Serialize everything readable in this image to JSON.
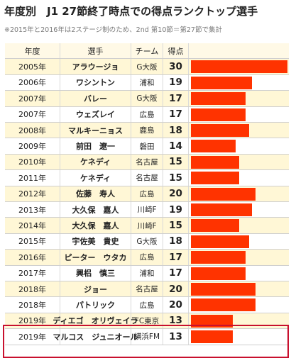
{
  "title": "年度別　J1 27節終了時点での得点ランクトップ選手",
  "note": "※2015年と2016年は2ステージ制のため、2nd 第10節＝第27節で集計",
  "headers": {
    "year": "年度",
    "player": "選手",
    "team": "チーム",
    "goals": "得点"
  },
  "colors": {
    "bar": "#ff3300",
    "stripe": "#fff7d6",
    "highlight_border": "#c8102e"
  },
  "chart_data": {
    "type": "table",
    "title": "年度別　J1 27節終了時点での得点ランクトップ選手",
    "columns": [
      "年度",
      "選手",
      "チーム",
      "得点"
    ],
    "bar_column": "得点",
    "bar_max": 30,
    "highlighted_rows": [
      16,
      17
    ],
    "rows": [
      {
        "year": "2005年",
        "player": "アラウージョ",
        "team": "G大阪",
        "goals": 30
      },
      {
        "year": "2006年",
        "player": "ワシントン",
        "team": "浦和",
        "goals": 19
      },
      {
        "year": "2007年",
        "player": "バレー",
        "team": "G大阪",
        "goals": 17
      },
      {
        "year": "2007年",
        "player": "ウェズレイ",
        "team": "広島",
        "goals": 17
      },
      {
        "year": "2008年",
        "player": "マルキーニョス",
        "team": "鹿島",
        "goals": 18
      },
      {
        "year": "2009年",
        "player": "前田　遼一",
        "team": "磐田",
        "goals": 14
      },
      {
        "year": "2010年",
        "player": "ケネディ",
        "team": "名古屋",
        "goals": 15
      },
      {
        "year": "2011年",
        "player": "ケネディ",
        "team": "名古屋",
        "goals": 15
      },
      {
        "year": "2012年",
        "player": "佐藤　寿人",
        "team": "広島",
        "goals": 20
      },
      {
        "year": "2013年",
        "player": "大久保　嘉人",
        "team": "川崎F",
        "goals": 19
      },
      {
        "year": "2014年",
        "player": "大久保　嘉人",
        "team": "川崎F",
        "goals": 15
      },
      {
        "year": "2015年",
        "player": "宇佐美　貴史",
        "team": "G大阪",
        "goals": 18
      },
      {
        "year": "2016年",
        "player": "ピーター　ウタカ",
        "team": "広島",
        "goals": 17
      },
      {
        "year": "2017年",
        "player": "興梠　慎三",
        "team": "浦和",
        "goals": 17
      },
      {
        "year": "2018年",
        "player": "ジョー",
        "team": "名古屋",
        "goals": 20
      },
      {
        "year": "2018年",
        "player": "パトリック",
        "team": "広島",
        "goals": 20
      },
      {
        "year": "2019年",
        "player": "ディエゴ　オリヴェイラ",
        "team": "FC東京",
        "goals": 13
      },
      {
        "year": "2019年",
        "player": "マルコス　ジュニオール",
        "team": "横浜FM",
        "goals": 13
      }
    ]
  }
}
